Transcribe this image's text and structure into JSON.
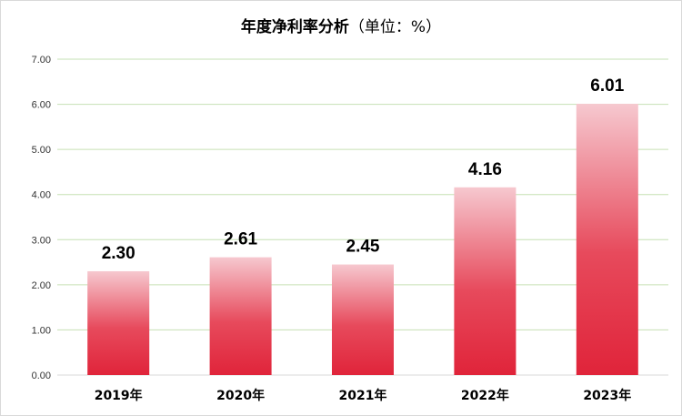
{
  "chart_data": {
    "type": "bar",
    "title": "年度净利率分析",
    "unit_label": "（单位：%）",
    "categories": [
      "2019年",
      "2020年",
      "2021年",
      "2022年",
      "2023年"
    ],
    "values": [
      2.3,
      2.61,
      2.45,
      4.16,
      6.01
    ],
    "data_labels": [
      "2.30",
      "2.61",
      "2.45",
      "4.16",
      "6.01"
    ],
    "y_ticks": [
      "0.00",
      "1.00",
      "2.00",
      "3.00",
      "4.00",
      "5.00",
      "6.00",
      "7.00"
    ],
    "ylim": [
      0,
      7
    ],
    "xlabel": "",
    "ylabel": "",
    "grid": true,
    "legend": "none",
    "colors": {
      "bar_top": "#f6c8cf",
      "bar_bottom": "#e0243a",
      "grid": "#c6e0b4",
      "axis": "#d9d9d9"
    }
  }
}
